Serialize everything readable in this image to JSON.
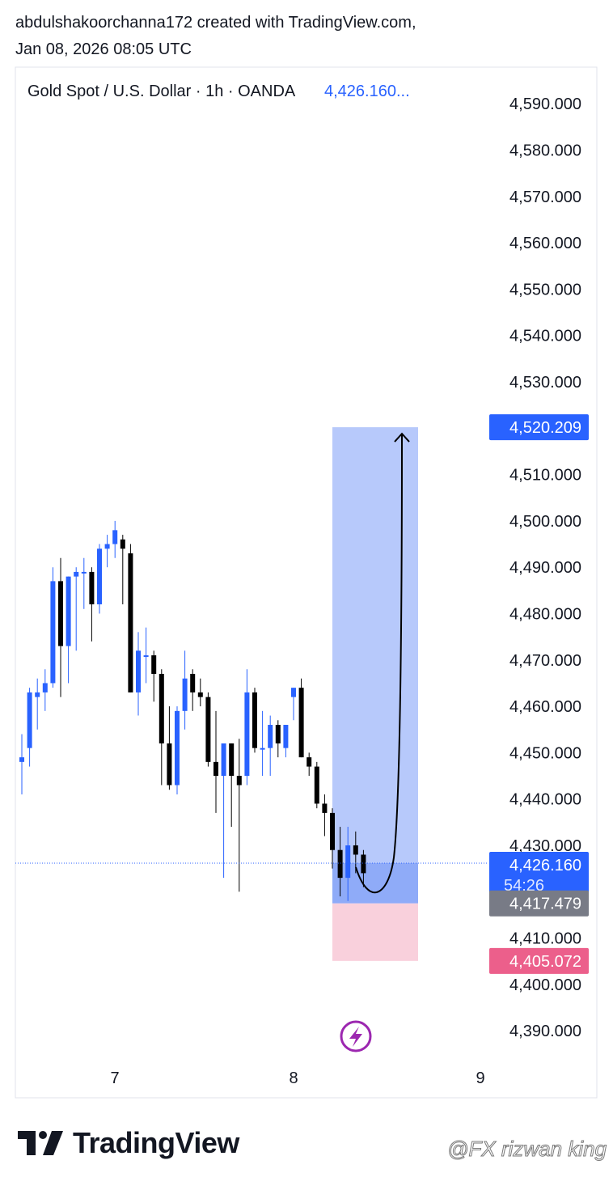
{
  "header": {
    "line1": "abdulshakoorchanna172 created with TradingView.com,",
    "line2": "Jan 08, 2026 08:05 UTC"
  },
  "chart_title": {
    "symbol": "Gold Spot / U.S. Dollar · 1h · OANDA",
    "price": "4,426.160..."
  },
  "colors": {
    "up": "#2962ff",
    "down": "#000000",
    "profit_zone": "#b7c9fb",
    "loss_zone": "#f9d0dc",
    "entry_zone": "#8fabf8",
    "label_blue": "#2962ff",
    "label_gray": "#787b86",
    "label_pink": "#ec5f8b",
    "lightning": "#9c27b0"
  },
  "chart_data": {
    "type": "candlestick",
    "symbol": "XAUUSD",
    "interval": "1h",
    "y_ticks": [
      "4,590.000",
      "4,580.000",
      "4,570.000",
      "4,560.000",
      "4,550.000",
      "4,540.000",
      "4,530.000",
      "4,510.000",
      "4,500.000",
      "4,490.000",
      "4,480.000",
      "4,470.000",
      "4,460.000",
      "4,450.000",
      "4,440.000",
      "4,430.000",
      "4,410.000",
      "4,400.000",
      "4,390.000"
    ],
    "ylim": [
      4385,
      4595
    ],
    "x_ticks": [
      "7",
      "8",
      "9"
    ],
    "candles": [
      {
        "o": 4448,
        "h": 4454,
        "l": 4441,
        "c": 4449
      },
      {
        "o": 4451,
        "h": 4464,
        "l": 4447,
        "c": 4463
      },
      {
        "o": 4462,
        "h": 4466,
        "l": 4455,
        "c": 4463
      },
      {
        "o": 4463,
        "h": 4468,
        "l": 4459,
        "c": 4465
      },
      {
        "o": 4465,
        "h": 4490,
        "l": 4464,
        "c": 4487
      },
      {
        "o": 4487,
        "h": 4492,
        "l": 4462,
        "c": 4473
      },
      {
        "o": 4473,
        "h": 4488,
        "l": 4465,
        "c": 4488
      },
      {
        "o": 4488,
        "h": 4490,
        "l": 4472,
        "c": 4489
      },
      {
        "o": 4489,
        "h": 4492,
        "l": 4481,
        "c": 4489
      },
      {
        "o": 4489,
        "h": 4490,
        "l": 4474,
        "c": 4482
      },
      {
        "o": 4482,
        "h": 4495,
        "l": 4480,
        "c": 4494
      },
      {
        "o": 4494,
        "h": 4497,
        "l": 4490,
        "c": 4495
      },
      {
        "o": 4495,
        "h": 4500,
        "l": 4492,
        "c": 4498
      },
      {
        "o": 4496,
        "h": 4497,
        "l": 4482,
        "c": 4494
      },
      {
        "o": 4493,
        "h": 4495,
        "l": 4463,
        "c": 4463
      },
      {
        "o": 4463,
        "h": 4476,
        "l": 4458,
        "c": 4472
      },
      {
        "o": 4471,
        "h": 4477,
        "l": 4465,
        "c": 4471
      },
      {
        "o": 4471,
        "h": 4472,
        "l": 4461,
        "c": 4467
      },
      {
        "o": 4467,
        "h": 4468,
        "l": 4443,
        "c": 4452
      },
      {
        "o": 4452,
        "h": 4460,
        "l": 4442,
        "c": 4443
      },
      {
        "o": 4443,
        "h": 4460,
        "l": 4441,
        "c": 4459
      },
      {
        "o": 4459,
        "h": 4472,
        "l": 4455,
        "c": 4466
      },
      {
        "o": 4467,
        "h": 4468,
        "l": 4459,
        "c": 4463
      },
      {
        "o": 4463,
        "h": 4466,
        "l": 4460,
        "c": 4462
      },
      {
        "o": 4462,
        "h": 4463,
        "l": 4447,
        "c": 4448
      },
      {
        "o": 4448,
        "h": 4459,
        "l": 4437,
        "c": 4445
      },
      {
        "o": 4445,
        "h": 4452,
        "l": 4423,
        "c": 4452
      },
      {
        "o": 4452,
        "h": 4452,
        "l": 4434,
        "c": 4445
      },
      {
        "o": 4445,
        "h": 4453,
        "l": 4420,
        "c": 4443
      },
      {
        "o": 4445,
        "h": 4468,
        "l": 4443,
        "c": 4463
      },
      {
        "o": 4463,
        "h": 4464,
        "l": 4450,
        "c": 4451
      },
      {
        "o": 4451,
        "h": 4459,
        "l": 4445,
        "c": 4451
      },
      {
        "o": 4451,
        "h": 4458,
        "l": 4445,
        "c": 4456
      },
      {
        "o": 4456,
        "h": 4457,
        "l": 4449,
        "c": 4452
      },
      {
        "o": 4451,
        "h": 4456,
        "l": 4449,
        "c": 4456
      },
      {
        "o": 4462,
        "h": 4464,
        "l": 4457,
        "c": 4464
      },
      {
        "o": 4464,
        "h": 4466,
        "l": 4449,
        "c": 4449
      },
      {
        "o": 4449,
        "h": 4450,
        "l": 4445,
        "c": 4447
      },
      {
        "o": 4447,
        "h": 4448,
        "l": 4438,
        "c": 4439
      },
      {
        "o": 4439,
        "h": 4441,
        "l": 4432,
        "c": 4437
      },
      {
        "o": 4437,
        "h": 4438,
        "l": 4425,
        "c": 4429
      },
      {
        "o": 4429,
        "h": 4434,
        "l": 4419,
        "c": 4423
      },
      {
        "o": 4423,
        "h": 4434,
        "l": 4418,
        "c": 4430
      },
      {
        "o": 4430,
        "h": 4433,
        "l": 4424,
        "c": 4428
      },
      {
        "o": 4428,
        "h": 4429,
        "l": 4421,
        "c": 4424
      }
    ],
    "current_price": 4426.16,
    "countdown": "54:26",
    "position": {
      "type": "long",
      "target": 4520.209,
      "entry": 4417.479,
      "stop": 4405.072
    },
    "price_labels": [
      {
        "value": "4,520.209",
        "color": "blue"
      },
      {
        "value": "4,426.160",
        "color": "blue"
      },
      {
        "value": "4,417.479",
        "color": "gray"
      },
      {
        "value": "4,405.072",
        "color": "pink"
      }
    ]
  },
  "footer": {
    "logo_text": "TradingView",
    "watermark": "@FX rizwan king"
  }
}
